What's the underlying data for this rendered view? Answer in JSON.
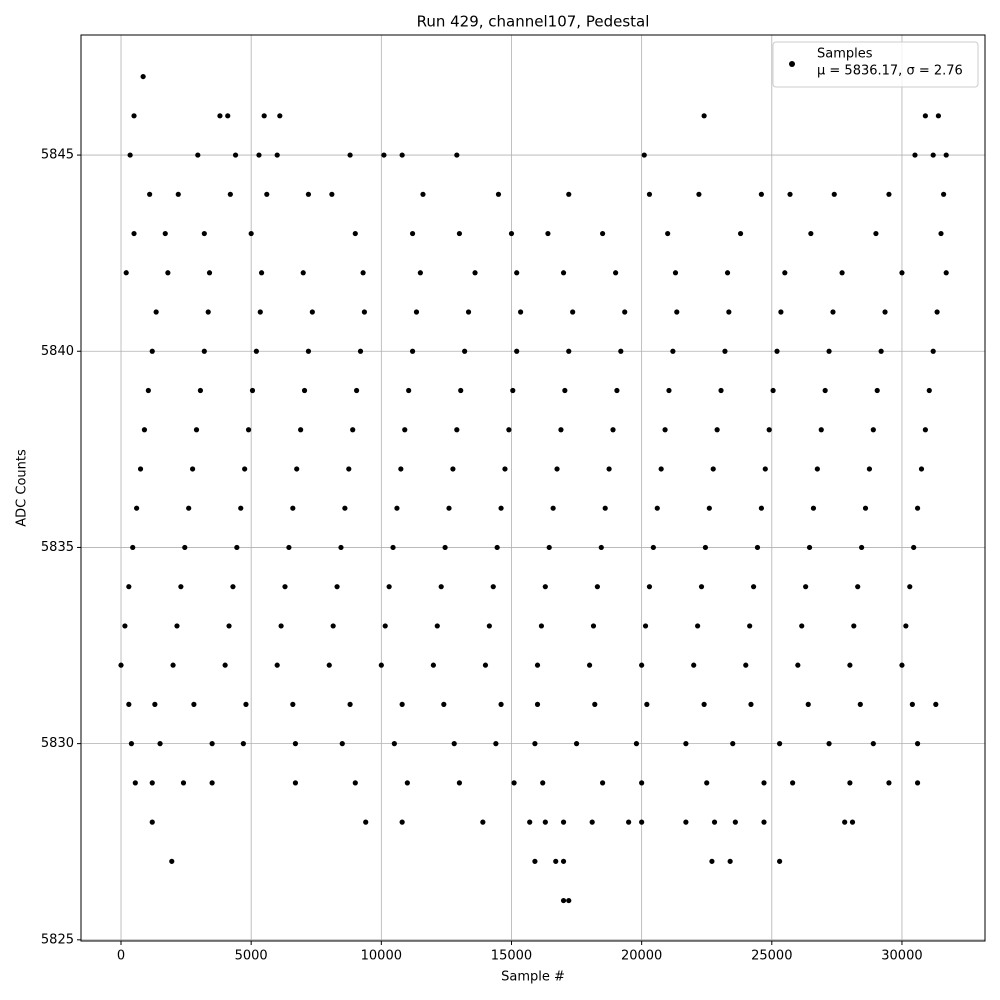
{
  "chart_data": {
    "type": "scatter",
    "title": "Run 429, channel107, Pedestal",
    "x_label": "Sample #",
    "y_label": "ADC Counts",
    "xlim": [
      -1537,
      33190
    ],
    "ylim": [
      5824.97,
      5848.06
    ],
    "xticks": [
      0,
      5000,
      10000,
      15000,
      20000,
      25000,
      30000
    ],
    "yticks": [
      5825,
      5830,
      5835,
      5840,
      5845
    ],
    "grid": true,
    "legend": "upper right",
    "legend_note": "μ = 5836.17, σ = 2.76",
    "series": [
      {
        "name": "Samples",
        "color": "#000000",
        "x": [
          0,
          2000,
          4000,
          6000,
          8000,
          10000,
          12000,
          14000,
          16000,
          18000,
          20000,
          22000,
          24000,
          26000,
          28000,
          30000,
          150,
          2150,
          4150,
          6150,
          8150,
          10150,
          12150,
          14150,
          16150,
          18150,
          20150,
          22150,
          24150,
          26150,
          28150,
          30150,
          300,
          2300,
          4300,
          6300,
          8300,
          10300,
          12300,
          14300,
          16300,
          18300,
          20300,
          22300,
          24300,
          26300,
          28300,
          30300,
          450,
          2450,
          4450,
          6450,
          8450,
          10450,
          12450,
          14450,
          16450,
          18450,
          20450,
          22450,
          24450,
          26450,
          28450,
          30450,
          600,
          2600,
          4600,
          6600,
          8600,
          10600,
          12600,
          14600,
          16600,
          18600,
          20600,
          22600,
          24600,
          26600,
          28600,
          30600,
          750,
          2750,
          4750,
          6750,
          8750,
          10750,
          12750,
          14750,
          16750,
          18750,
          20750,
          22750,
          24750,
          26750,
          28750,
          30750,
          900,
          2900,
          4900,
          6900,
          8900,
          10900,
          12900,
          14900,
          16900,
          18900,
          20900,
          22900,
          24900,
          26900,
          28900,
          30900,
          1050,
          3050,
          5050,
          7050,
          9050,
          11050,
          13050,
          15050,
          17050,
          19050,
          21050,
          23050,
          25050,
          27050,
          29050,
          31050,
          1200,
          3200,
          5200,
          7200,
          9200,
          11200,
          13200,
          15200,
          17200,
          19200,
          21200,
          23200,
          25200,
          27200,
          29200,
          31200,
          1350,
          3350,
          5350,
          7350,
          9350,
          11350,
          13350,
          15350,
          17350,
          19350,
          21350,
          23350,
          25350,
          27350,
          29350,
          31350,
          850,
          500,
          3800,
          4100,
          5500,
          6100,
          22400,
          31400,
          30900,
          350,
          2950,
          4400,
          5300,
          6000,
          8800,
          10100,
          10800,
          12900,
          20100,
          30500,
          31200,
          31700,
          1100,
          2200,
          4200,
          5600,
          7200,
          8100,
          11600,
          14500,
          17200,
          20300,
          22200,
          24600,
          25700,
          27400,
          29500,
          31600,
          500,
          1700,
          3200,
          5000,
          9000,
          11200,
          13000,
          15000,
          16400,
          18500,
          21000,
          23800,
          26500,
          29000,
          31500,
          200,
          1800,
          3400,
          5400,
          7000,
          9300,
          11500,
          13600,
          15200,
          17000,
          19000,
          21300,
          23300,
          25500,
          27700,
          30000,
          31700,
          300,
          1300,
          2800,
          4800,
          6600,
          8800,
          10800,
          12400,
          14600,
          16000,
          18200,
          20200,
          22400,
          24200,
          26400,
          28400,
          30400,
          31300,
          400,
          1500,
          3500,
          4700,
          6700,
          8500,
          10500,
          12800,
          14400,
          15900,
          17500,
          19800,
          21700,
          23500,
          25300,
          27200,
          28900,
          30600,
          550,
          1200,
          2400,
          3500,
          6700,
          9000,
          11000,
          13000,
          15100,
          16200,
          18500,
          20000,
          22500,
          24700,
          25800,
          28000,
          29500,
          30600,
          1200,
          9400,
          10800,
          13900,
          15700,
          16300,
          17000,
          18100,
          19500,
          20000,
          21700,
          22800,
          23600,
          24700,
          27800,
          28100,
          1950,
          15900,
          16700,
          17000,
          22700,
          23400,
          25300,
          17000,
          17200
        ],
        "values": [
          5832,
          5832,
          5832,
          5832,
          5832,
          5832,
          5832,
          5832,
          5832,
          5832,
          5832,
          5832,
          5832,
          5832,
          5832,
          5832,
          5833,
          5833,
          5833,
          5833,
          5833,
          5833,
          5833,
          5833,
          5833,
          5833,
          5833,
          5833,
          5833,
          5833,
          5833,
          5833,
          5834,
          5834,
          5834,
          5834,
          5834,
          5834,
          5834,
          5834,
          5834,
          5834,
          5834,
          5834,
          5834,
          5834,
          5834,
          5834,
          5835,
          5835,
          5835,
          5835,
          5835,
          5835,
          5835,
          5835,
          5835,
          5835,
          5835,
          5835,
          5835,
          5835,
          5835,
          5835,
          5836,
          5836,
          5836,
          5836,
          5836,
          5836,
          5836,
          5836,
          5836,
          5836,
          5836,
          5836,
          5836,
          5836,
          5836,
          5836,
          5837,
          5837,
          5837,
          5837,
          5837,
          5837,
          5837,
          5837,
          5837,
          5837,
          5837,
          5837,
          5837,
          5837,
          5837,
          5837,
          5838,
          5838,
          5838,
          5838,
          5838,
          5838,
          5838,
          5838,
          5838,
          5838,
          5838,
          5838,
          5838,
          5838,
          5838,
          5838,
          5839,
          5839,
          5839,
          5839,
          5839,
          5839,
          5839,
          5839,
          5839,
          5839,
          5839,
          5839,
          5839,
          5839,
          5839,
          5839,
          5840,
          5840,
          5840,
          5840,
          5840,
          5840,
          5840,
          5840,
          5840,
          5840,
          5840,
          5840,
          5840,
          5840,
          5840,
          5840,
          5841,
          5841,
          5841,
          5841,
          5841,
          5841,
          5841,
          5841,
          5841,
          5841,
          5841,
          5841,
          5841,
          5841,
          5841,
          5841,
          5847,
          5846,
          5846,
          5846,
          5846,
          5846,
          5846,
          5846,
          5846,
          5845,
          5845,
          5845,
          5845,
          5845,
          5845,
          5845,
          5845,
          5845,
          5845,
          5845,
          5845,
          5845,
          5844,
          5844,
          5844,
          5844,
          5844,
          5844,
          5844,
          5844,
          5844,
          5844,
          5844,
          5844,
          5844,
          5844,
          5844,
          5844,
          5843,
          5843,
          5843,
          5843,
          5843,
          5843,
          5843,
          5843,
          5843,
          5843,
          5843,
          5843,
          5843,
          5843,
          5843,
          5842,
          5842,
          5842,
          5842,
          5842,
          5842,
          5842,
          5842,
          5842,
          5842,
          5842,
          5842,
          5842,
          5842,
          5842,
          5842,
          5842,
          5831,
          5831,
          5831,
          5831,
          5831,
          5831,
          5831,
          5831,
          5831,
          5831,
          5831,
          5831,
          5831,
          5831,
          5831,
          5831,
          5831,
          5831,
          5830,
          5830,
          5830,
          5830,
          5830,
          5830,
          5830,
          5830,
          5830,
          5830,
          5830,
          5830,
          5830,
          5830,
          5830,
          5830,
          5830,
          5830,
          5829,
          5829,
          5829,
          5829,
          5829,
          5829,
          5829,
          5829,
          5829,
          5829,
          5829,
          5829,
          5829,
          5829,
          5829,
          5829,
          5829,
          5829,
          5828,
          5828,
          5828,
          5828,
          5828,
          5828,
          5828,
          5828,
          5828,
          5828,
          5828,
          5828,
          5828,
          5828,
          5828,
          5828,
          5827,
          5827,
          5827,
          5827,
          5827,
          5827,
          5827,
          5826,
          5826
        ]
      }
    ]
  }
}
